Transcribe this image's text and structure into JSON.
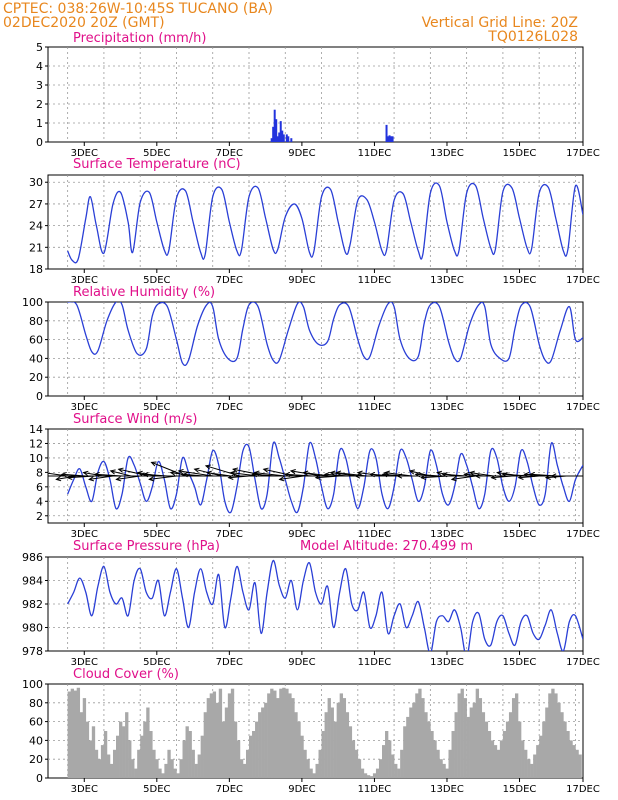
{
  "header": {
    "line1": "CPTEC:   038:26W-10:45S   TUCANO (BA)",
    "line2": "02DEC2020 20Z (GMT)",
    "grid_note": "Vertical Grid Line: 20Z",
    "model": "TQ0126L028"
  },
  "colors": {
    "header": "#e8871e",
    "title": "#e0108a",
    "line": "#2a3fd6",
    "bar": "#2233dd",
    "cloud": "#a8a8a8",
    "grid": "#9a9a9a"
  },
  "chart_data": [
    {
      "type": "bar",
      "title": "Precipitation (mm/h)",
      "x_start": "02DEC2020 20Z",
      "x_step_hours": 1,
      "x_ticks": [
        "3DEC",
        "5DEC",
        "7DEC",
        "9DEC",
        "11DEC",
        "13DEC",
        "15DEC",
        "17DEC"
      ],
      "ylim": [
        0,
        5
      ],
      "yticks": [
        "0",
        "1",
        "2",
        "3",
        "4",
        "5"
      ],
      "grid": true,
      "values_by_day": [
        {
          "day": "8DEC",
          "x_hours": [
            135,
            136,
            137,
            138,
            139,
            140,
            141,
            142,
            143,
            145,
            146,
            148
          ],
          "values": [
            0.2,
            0.8,
            1.7,
            1.2,
            0.3,
            0.5,
            1.1,
            0.6,
            0.4,
            0.4,
            0.3,
            0.2
          ]
        },
        {
          "day": "11DEC",
          "x_hours": [
            211,
            212,
            213,
            214,
            215
          ],
          "values": [
            0.9,
            0.3,
            0.35,
            0.3,
            0.3
          ]
        }
      ]
    },
    {
      "type": "line",
      "title": "Surface Temperature (nC)",
      "x_ticks": [
        "3DEC",
        "5DEC",
        "7DEC",
        "9DEC",
        "11DEC",
        "13DEC",
        "15DEC",
        "17DEC"
      ],
      "ylim": [
        18,
        31
      ],
      "yticks": [
        "18",
        "21",
        "24",
        "27",
        "30"
      ],
      "grid": true,
      "series": [
        {
          "x_hours": [
            0,
            3,
            7,
            12,
            15,
            19,
            24,
            30,
            35,
            40,
            43,
            48,
            54,
            59,
            64,
            67,
            72,
            78,
            83,
            88,
            91,
            96,
            102,
            107,
            112,
            115,
            120,
            126,
            131,
            136,
            139,
            144,
            150,
            155,
            160,
            163,
            168,
            174,
            179,
            184,
            187,
            192,
            198,
            203,
            208,
            211,
            216,
            222,
            227,
            232,
            235,
            240,
            246,
            251,
            256,
            259,
            264,
            270,
            275,
            280,
            283,
            288,
            294,
            299,
            304,
            307,
            312,
            318,
            323,
            328,
            331,
            336,
            341
          ],
          "values": [
            20.5,
            19.2,
            19.4,
            25.0,
            28.0,
            24.0,
            20.2,
            27.0,
            28.6,
            24.5,
            20.3,
            27.2,
            28.6,
            24.5,
            20.6,
            20.6,
            27.8,
            28.8,
            24.5,
            20.3,
            20.0,
            28.0,
            29.0,
            24.5,
            20.5,
            20.6,
            28.0,
            29.2,
            25.0,
            20.7,
            20.7,
            25.2,
            27.0,
            25.0,
            20.3,
            20.5,
            28.0,
            29.0,
            24.5,
            20.2,
            21.5,
            27.5,
            27.6,
            24.5,
            20.5,
            20.6,
            27.5,
            28.4,
            24.5,
            20.5,
            20.0,
            28.5,
            29.5,
            24.5,
            20.5,
            20.6,
            28.5,
            29.5,
            25.0,
            20.9,
            20.7,
            28.7,
            29.2,
            25.0,
            20.9,
            20.8,
            28.5,
            29.3,
            25.0,
            20.5,
            20.7,
            29.5,
            25.5
          ]
        }
      ]
    },
    {
      "type": "line",
      "title": "Relative Humidity (%)",
      "x_ticks": [
        "3DEC",
        "5DEC",
        "7DEC",
        "9DEC",
        "11DEC",
        "13DEC",
        "15DEC",
        "17DEC"
      ],
      "ylim": [
        0,
        100
      ],
      "yticks": [
        "0",
        "20",
        "40",
        "60",
        "80",
        "100"
      ],
      "grid": true,
      "series": [
        {
          "x_hours": [
            0,
            6,
            12,
            16,
            20,
            26,
            32,
            36,
            40,
            46,
            52,
            56,
            60,
            66,
            72,
            76,
            80,
            86,
            92,
            96,
            100,
            106,
            112,
            116,
            120,
            126,
            132,
            136,
            140,
            146,
            152,
            156,
            160,
            166,
            172,
            176,
            180,
            186,
            192,
            196,
            200,
            206,
            212,
            216,
            220,
            226,
            232,
            236,
            240,
            246,
            252,
            256,
            260,
            266,
            272,
            276,
            280,
            286,
            292,
            296,
            300,
            306,
            312,
            316,
            320,
            326,
            332,
            336,
            341
          ],
          "values": [
            100,
            97,
            65,
            47,
            48,
            80,
            100,
            97,
            70,
            45,
            50,
            85,
            98,
            95,
            60,
            35,
            38,
            75,
            97,
            95,
            60,
            40,
            40,
            72,
            97,
            95,
            55,
            38,
            38,
            70,
            98,
            95,
            70,
            55,
            58,
            82,
            97,
            95,
            60,
            42,
            42,
            75,
            98,
            95,
            60,
            40,
            42,
            78,
            97,
            95,
            58,
            40,
            40,
            76,
            97,
            95,
            55,
            40,
            40,
            72,
            96,
            95,
            55,
            38,
            38,
            70,
            95,
            60,
            62
          ]
        }
      ]
    },
    {
      "type": "line",
      "title": "Surface Wind (m/s)",
      "x_ticks": [
        "3DEC",
        "5DEC",
        "7DEC",
        "9DEC",
        "11DEC",
        "13DEC",
        "15DEC",
        "17DEC"
      ],
      "ylim": [
        1,
        14
      ],
      "yticks": [
        "2",
        "4",
        "6",
        "8",
        "10",
        "12",
        "14"
      ],
      "grid": true,
      "series": [
        {
          "x_hours": [
            0,
            4,
            8,
            12,
            16,
            20,
            24,
            28,
            32,
            36,
            40,
            44,
            48,
            52,
            56,
            60,
            64,
            68,
            72,
            76,
            80,
            84,
            88,
            92,
            96,
            100,
            104,
            108,
            112,
            116,
            120,
            124,
            128,
            132,
            136,
            140,
            144,
            148,
            152,
            156,
            160,
            164,
            168,
            172,
            176,
            180,
            184,
            188,
            192,
            196,
            200,
            204,
            208,
            212,
            216,
            220,
            224,
            228,
            232,
            236,
            240,
            244,
            248,
            252,
            256,
            260,
            264,
            268,
            272,
            276,
            280,
            284,
            288,
            292,
            296,
            300,
            304,
            308,
            312,
            316,
            320,
            324,
            328,
            332,
            336,
            341
          ],
          "values": [
            5,
            7,
            8.5,
            6,
            4,
            8,
            9.5,
            7,
            3,
            5,
            10,
            9,
            6.5,
            4,
            6,
            9.5,
            7,
            3,
            5,
            10,
            8,
            6,
            3.5,
            7,
            11,
            9,
            4,
            2.5,
            6,
            11,
            11.5,
            7,
            3,
            5,
            12,
            10,
            7,
            4,
            2.5,
            6,
            12,
            10,
            6,
            3,
            5,
            11,
            10,
            6,
            3,
            6,
            11,
            10,
            5,
            3,
            6,
            11,
            10,
            7,
            4,
            6,
            11,
            9,
            5,
            3.5,
            6,
            10.5,
            9,
            6,
            3,
            5,
            11,
            10,
            6,
            4,
            6,
            11,
            9.5,
            6,
            3.5,
            5,
            12,
            9,
            6,
            4,
            7,
            9
          ]
        }
      ],
      "wind_vectors": {
        "reference_level": 7.5,
        "x_hours": [
          0,
          6,
          12,
          18,
          24,
          30,
          36,
          42,
          48,
          54,
          60,
          66,
          72,
          78,
          84,
          90,
          96,
          102,
          108,
          114,
          120,
          126,
          132,
          138,
          144,
          150,
          156,
          162,
          168,
          174,
          180,
          186,
          192,
          198,
          204,
          210,
          216,
          222,
          228,
          234,
          240,
          246,
          252,
          258,
          264,
          270,
          276,
          282,
          288,
          294,
          300,
          306,
          312,
          318,
          324,
          330,
          336
        ],
        "u": [
          -7,
          -6,
          -7,
          -8,
          -6,
          -7,
          -8,
          -6,
          -7,
          -9,
          -6,
          -7,
          -8,
          -10,
          -7,
          -6,
          -10,
          -8,
          -7,
          -10,
          -6,
          -8,
          -10,
          -7,
          -9,
          -9,
          -7,
          -8,
          -9,
          -8,
          -7,
          -7,
          -8,
          -9,
          -6,
          -8,
          -7,
          -6,
          -8,
          -7,
          -6,
          -7,
          -8,
          -6,
          -7,
          -7,
          -6,
          -7,
          -8,
          -6,
          -7,
          -8,
          -6,
          -7,
          -8,
          -6,
          -7
        ],
        "v": [
          1,
          -1,
          0.5,
          -0.5,
          1,
          -1,
          0.5,
          1.5,
          -1,
          2,
          1,
          0.5,
          -1,
          4,
          1,
          0.5,
          1.5,
          2,
          1,
          3,
          -0.5,
          1,
          2,
          0.5,
          1,
          2,
          -1,
          0.5,
          1.5,
          1,
          -0.5,
          0.5,
          1,
          1,
          0,
          1,
          0.5,
          0.5,
          1,
          0,
          1.5,
          0.5,
          -0.5,
          1,
          0.5,
          -1,
          0.5,
          1,
          0,
          -0.5,
          1,
          0.5,
          -0.5,
          0.5,
          0.5,
          -0.5,
          0
        ]
      }
    },
    {
      "type": "line",
      "title": "Surface Pressure (hPa)",
      "subtitle": "Model Altitude: 270.499  m",
      "x_ticks": [
        "3DEC",
        "5DEC",
        "7DEC",
        "9DEC",
        "11DEC",
        "13DEC",
        "15DEC",
        "17DEC"
      ],
      "ylim": [
        978,
        986
      ],
      "yticks": [
        "978",
        "980",
        "982",
        "984",
        "986"
      ],
      "grid": true,
      "series": [
        {
          "x_hours": [
            0,
            4,
            8,
            12,
            16,
            20,
            24,
            28,
            32,
            36,
            40,
            44,
            48,
            52,
            56,
            60,
            64,
            68,
            72,
            76,
            80,
            84,
            88,
            92,
            96,
            100,
            104,
            108,
            112,
            116,
            120,
            124,
            128,
            132,
            136,
            140,
            144,
            148,
            152,
            156,
            160,
            164,
            168,
            172,
            176,
            180,
            184,
            188,
            192,
            196,
            200,
            204,
            208,
            212,
            216,
            220,
            224,
            228,
            232,
            236,
            240,
            244,
            248,
            252,
            256,
            260,
            264,
            268,
            272,
            276,
            280,
            284,
            288,
            292,
            296,
            300,
            304,
            308,
            312,
            316,
            320,
            324,
            328,
            332,
            336,
            341
          ],
          "values": [
            982,
            983,
            984.2,
            983,
            981,
            983.5,
            985.2,
            983,
            982,
            982.5,
            981,
            984,
            985,
            983,
            982.5,
            984,
            981,
            983,
            985,
            982.5,
            980,
            983,
            985,
            983,
            982,
            984.5,
            980,
            982.5,
            985.2,
            983,
            981.5,
            983.8,
            979.5,
            983,
            985.7,
            983.6,
            982.5,
            984,
            981.5,
            984,
            985.5,
            983,
            982,
            983.5,
            980,
            983,
            985,
            982,
            981.5,
            983,
            980,
            981,
            983,
            979.5,
            981,
            982,
            980,
            981,
            982.2,
            980,
            977.8,
            980.5,
            981,
            980.5,
            981.5,
            980,
            977.5,
            980.5,
            981.2,
            979,
            978.5,
            980.5,
            981,
            979.5,
            978.5,
            980.5,
            981,
            979.5,
            979,
            980.2,
            981.5,
            979.5,
            978,
            980.5,
            981,
            979
          ]
        }
      ]
    },
    {
      "type": "bar",
      "title": "Cloud Cover (%)",
      "x_ticks": [
        "3DEC",
        "5DEC",
        "7DEC",
        "9DEC",
        "11DEC",
        "13DEC",
        "15DEC",
        "17DEC"
      ],
      "ylim": [
        0,
        100
      ],
      "yticks": [
        "0",
        "20",
        "40",
        "60",
        "80",
        "100"
      ],
      "grid": true,
      "x_step_hours": 2,
      "values": [
        92,
        95,
        93,
        96,
        70,
        85,
        60,
        40,
        55,
        30,
        20,
        35,
        50,
        25,
        15,
        30,
        45,
        60,
        55,
        70,
        40,
        20,
        10,
        30,
        45,
        60,
        75,
        50,
        30,
        20,
        10,
        5,
        15,
        30,
        20,
        10,
        5,
        20,
        40,
        55,
        50,
        30,
        15,
        25,
        45,
        70,
        85,
        90,
        92,
        80,
        95,
        60,
        75,
        90,
        95,
        60,
        40,
        20,
        15,
        30,
        45,
        50,
        60,
        70,
        75,
        80,
        90,
        95,
        93,
        85,
        95,
        96,
        95,
        90,
        85,
        70,
        60,
        45,
        30,
        20,
        10,
        5,
        15,
        30,
        50,
        70,
        85,
        75,
        60,
        80,
        90,
        85,
        70,
        55,
        40,
        30,
        20,
        10,
        5,
        3,
        2,
        5,
        10,
        20,
        35,
        50,
        40,
        25,
        15,
        10,
        30,
        55,
        65,
        75,
        80,
        90,
        95,
        85,
        70,
        60,
        50,
        40,
        30,
        20,
        15,
        10,
        30,
        50,
        70,
        90,
        95,
        85,
        65,
        75,
        80,
        95,
        85,
        70,
        60,
        50,
        40,
        35,
        30,
        40,
        50,
        60,
        70,
        85,
        90,
        60,
        40,
        30,
        20,
        15,
        25,
        35,
        45,
        60,
        75,
        90,
        95,
        90,
        80,
        70,
        60,
        50,
        40,
        35,
        30,
        25
      ]
    }
  ]
}
